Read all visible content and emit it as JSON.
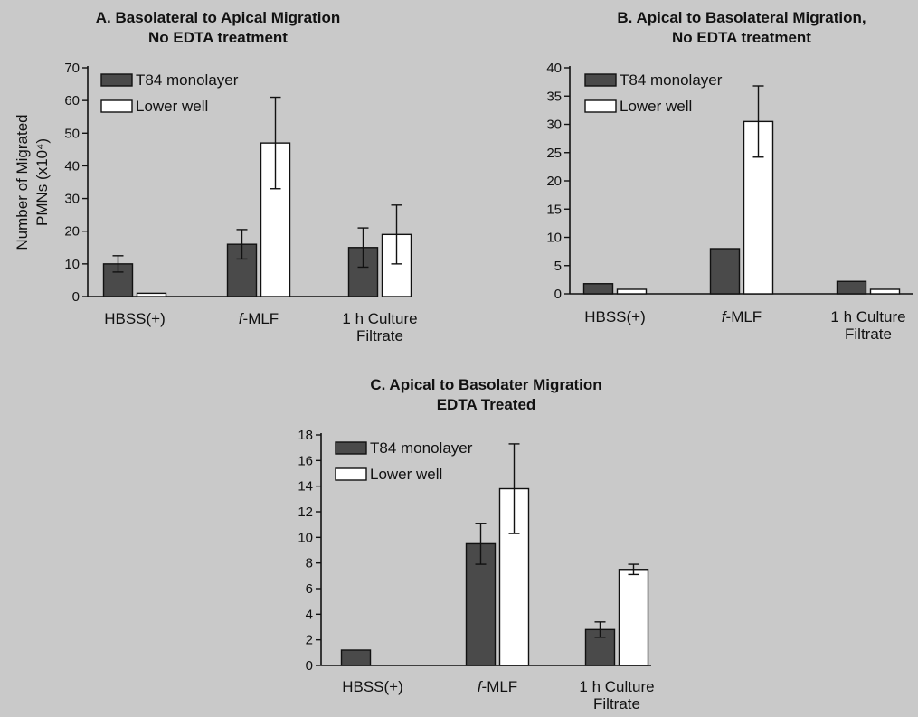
{
  "background_color": "#c9c9c9",
  "colors": {
    "dark_bar": "#4a4a4a",
    "light_bar": "#ffffff",
    "axis": "#111111"
  },
  "chart_data": [
    {
      "panel": "A",
      "type": "bar",
      "title_lines": [
        "A.  Basolateral to Apical Migration",
        "No EDTA treatment"
      ],
      "ylabel_lines": [
        "Number of Migrated",
        "PMNs (x10⁴)"
      ],
      "categories": [
        [
          "HBSS(+)"
        ],
        [
          "f-MLF"
        ],
        [
          "1 h Culture",
          "Filtrate"
        ]
      ],
      "ylim": [
        0,
        70
      ],
      "yticks": [
        0,
        10,
        20,
        30,
        40,
        50,
        60,
        70
      ],
      "series": [
        {
          "name": "T84 monolayer",
          "values": [
            10,
            16,
            15
          ],
          "errors": [
            2.5,
            4.5,
            6
          ]
        },
        {
          "name": "Lower well",
          "values": [
            1,
            47,
            19
          ],
          "errors": [
            0,
            14,
            9
          ]
        }
      ],
      "legend": "top-left"
    },
    {
      "panel": "B",
      "type": "bar",
      "title_lines": [
        "B.  Apical to Basolateral Migration,",
        "No EDTA treatment"
      ],
      "ylabel_lines": [],
      "categories": [
        [
          "HBSS(+)"
        ],
        [
          "f-MLF"
        ],
        [
          "1 h Culture",
          "Filtrate"
        ]
      ],
      "ylim": [
        0,
        40
      ],
      "yticks": [
        0,
        5,
        10,
        15,
        20,
        25,
        30,
        35,
        40
      ],
      "series": [
        {
          "name": "T84 monolayer",
          "values": [
            1.8,
            8,
            2.2
          ],
          "errors": [
            0,
            0,
            0
          ]
        },
        {
          "name": "Lower well",
          "values": [
            0.8,
            30.5,
            0.8
          ],
          "errors": [
            0,
            6.3,
            0
          ]
        }
      ],
      "legend": "top-left"
    },
    {
      "panel": "C",
      "type": "bar",
      "title_lines": [
        "C.  Apical to Basolater Migration",
        "EDTA Treated"
      ],
      "ylabel_lines": [],
      "categories": [
        [
          "HBSS(+)"
        ],
        [
          "f-MLF"
        ],
        [
          "1 h Culture",
          "Filtrate"
        ]
      ],
      "ylim": [
        0,
        18
      ],
      "yticks": [
        0,
        2,
        4,
        6,
        8,
        10,
        12,
        14,
        16,
        18
      ],
      "series": [
        {
          "name": "T84 monolayer",
          "values": [
            1.2,
            9.5,
            2.8
          ],
          "errors": [
            0,
            1.6,
            0.6
          ]
        },
        {
          "name": "Lower well",
          "values": [
            0,
            13.8,
            7.5
          ],
          "errors": [
            0,
            3.5,
            0.4
          ]
        }
      ],
      "legend": "top-left"
    }
  ]
}
